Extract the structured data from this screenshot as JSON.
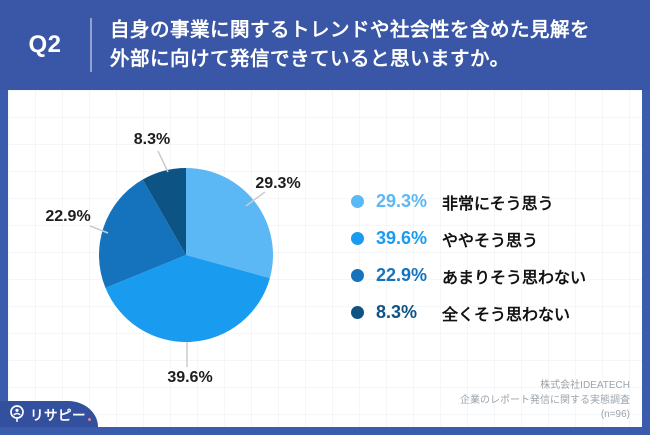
{
  "header": {
    "qnum": "Q2",
    "question_line1": "自身の事業に関するトレンドや社会性を含めた見解を",
    "question_line2": "外部に向けて発信できていると思いますか。"
  },
  "chart_data": {
    "type": "pie",
    "title": "自身の事業に関するトレンドや社会性を含めた見解を外部に向けて発信できていると思いますか。",
    "categories": [
      "非常にそう思う",
      "ややそう思う",
      "あまりそう思わない",
      "全くそう思わない"
    ],
    "values": [
      29.3,
      39.6,
      22.9,
      8.3
    ],
    "unit": "%",
    "colors": [
      "#5CB8F5",
      "#199CF0",
      "#1473BC",
      "#0D5484"
    ],
    "start_angle_deg": 0,
    "direction": "clockwise",
    "legend_position": "right",
    "sample_size": "n=96"
  },
  "legend": {
    "items": [
      {
        "pct": "29.3%",
        "label": "非常にそう思う",
        "color": "#5CB8F5"
      },
      {
        "pct": "39.6%",
        "label": "ややそう思う",
        "color": "#199CF0"
      },
      {
        "pct": "22.9%",
        "label": "あまりそう思わない",
        "color": "#1473BC"
      },
      {
        "pct": "8.3%",
        "label": "全くそう思わない",
        "color": "#0D5484"
      }
    ]
  },
  "footer": {
    "company": "株式会社IDEATECH",
    "survey": "企業のレポート発信に関する実態調査",
    "sample": "(n=96)",
    "logo_text": "リサピー"
  },
  "colors": {
    "header_bg": "#3A56A6",
    "frame": "#3B5BAD",
    "badge_bg": "#33509E",
    "leader_line": "#c9ccd0"
  }
}
